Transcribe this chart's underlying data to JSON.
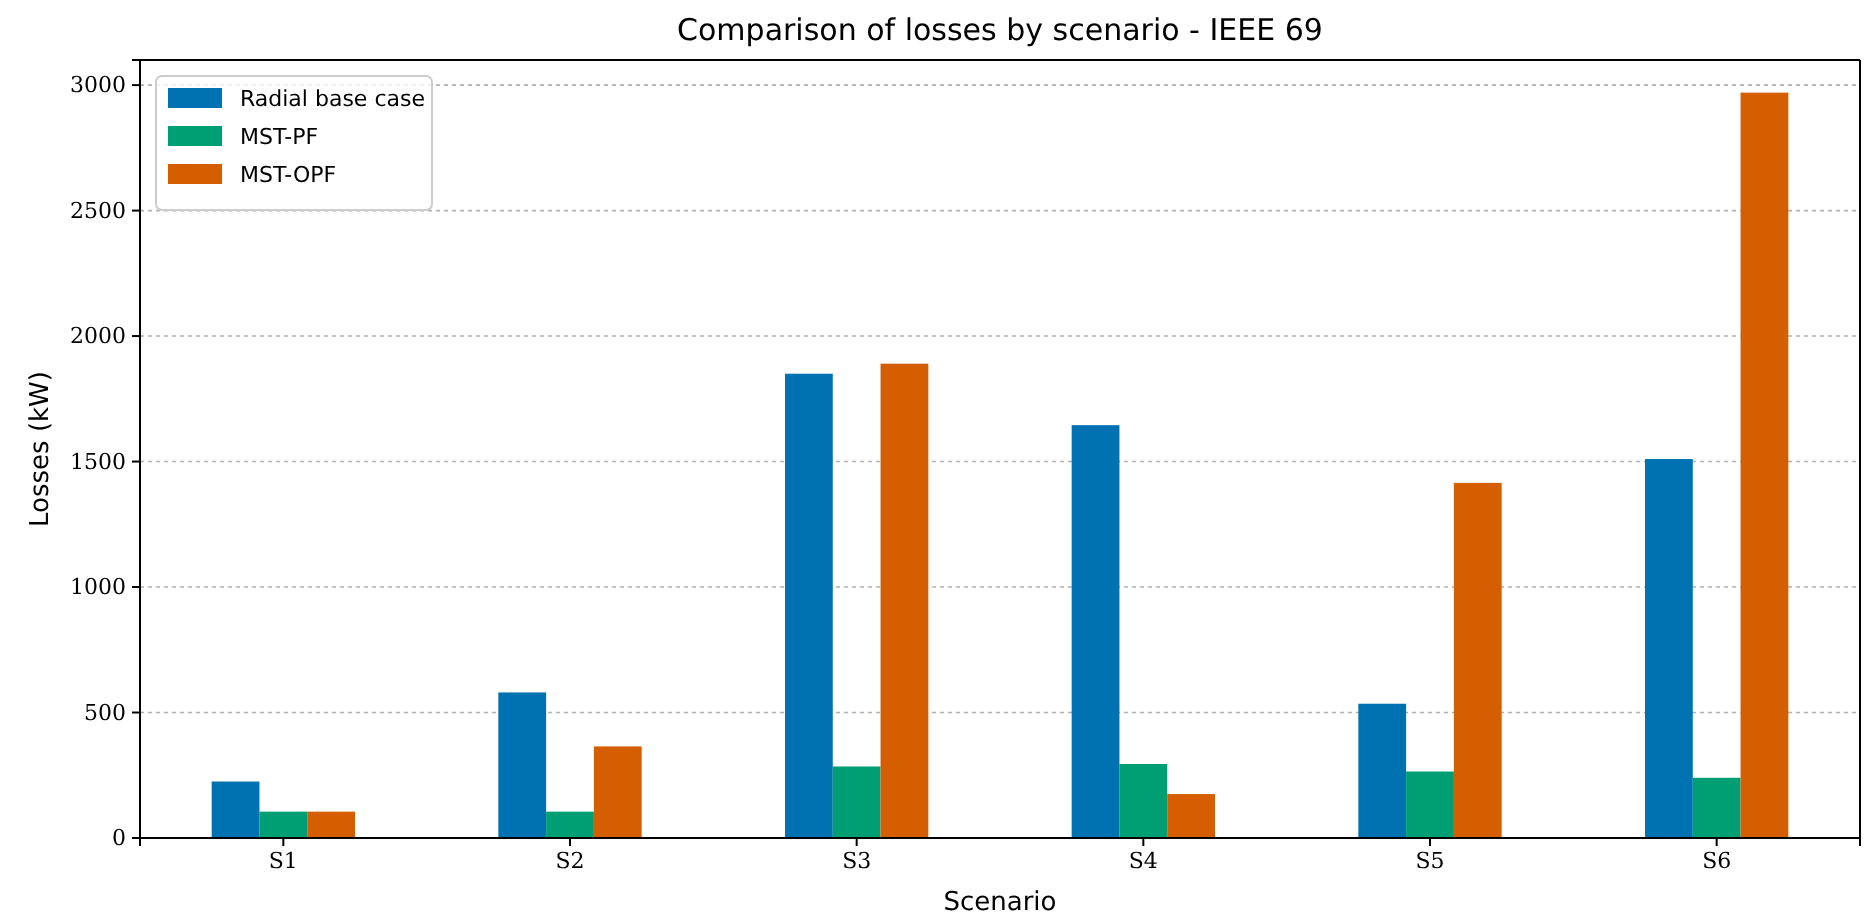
{
  "chart_data": {
    "type": "bar",
    "title": "Comparison of losses by scenario - IEEE 69",
    "xlabel": "Scenario",
    "ylabel": "Losses (kW)",
    "categories": [
      "S1",
      "S2",
      "S3",
      "S4",
      "S5",
      "S6"
    ],
    "series": [
      {
        "name": "Radial base case",
        "color": "#0072b2",
        "values": [
          225,
          580,
          1850,
          1645,
          535,
          1510
        ]
      },
      {
        "name": "MST-PF",
        "color": "#009e73",
        "values": [
          105,
          105,
          285,
          295,
          265,
          240
        ]
      },
      {
        "name": "MST-OPF",
        "color": "#d55e00",
        "values": [
          105,
          365,
          1890,
          175,
          1415,
          2970
        ]
      }
    ],
    "ylim": [
      0,
      3100
    ],
    "yticks": [
      0,
      500,
      1000,
      1500,
      2000,
      2500,
      3000
    ],
    "grid": "y",
    "legend": "top left"
  }
}
